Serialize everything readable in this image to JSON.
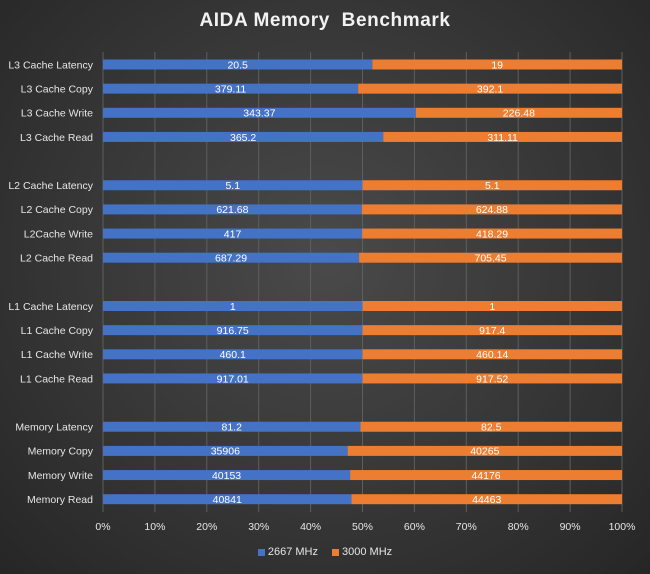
{
  "chart_data": {
    "type": "bar",
    "orientation": "horizontal",
    "stacked": "100%",
    "title": "AIDA Memory  Benchmark",
    "xlabel": "",
    "ylabel": "",
    "xlim": [
      0,
      100
    ],
    "xticks": [
      "0%",
      "10%",
      "20%",
      "30%",
      "40%",
      "50%",
      "60%",
      "70%",
      "80%",
      "90%",
      "100%"
    ],
    "grid": true,
    "legend_position": "bottom",
    "groups": [
      [
        "L3 Cache Latency",
        "L3 Cache Copy",
        "L3 Cache Write",
        "L3 Cache Read"
      ],
      [
        "L2 Cache Latency",
        "L2 Cache Copy",
        "L2Cache Write",
        "L2 Cache Read"
      ],
      [
        "L1 Cache Latency",
        "L1 Cache Copy",
        "L1 Cache Write",
        "L1 Cache Read"
      ],
      [
        "Memory Latency",
        "Memory Copy",
        "Memory Write",
        "Memory Read"
      ]
    ],
    "categories": [
      "L3 Cache Latency",
      "L3 Cache Copy",
      "L3 Cache Write",
      "L3 Cache Read",
      "L2 Cache Latency",
      "L2 Cache Copy",
      "L2Cache Write",
      "L2 Cache Read",
      "L1 Cache Latency",
      "L1 Cache Copy",
      "L1 Cache Write",
      "L1 Cache Read",
      "Memory Latency",
      "Memory Copy",
      "Memory Write",
      "Memory Read"
    ],
    "series": [
      {
        "name": "2667 MHz",
        "color": "#4472c4",
        "values": [
          20.5,
          379.11,
          343.37,
          365.2,
          5.1,
          621.68,
          417,
          687.29,
          1,
          916.75,
          460.1,
          917.01,
          81.2,
          35906,
          40153,
          40841
        ],
        "labels": [
          "20.5",
          "379.11",
          "343.37",
          "365.2",
          "5.1",
          "621.68",
          "417",
          "687.29",
          "1",
          "916.75",
          "460.1",
          "917.01",
          "81.2",
          "35906",
          "40153",
          "40841"
        ]
      },
      {
        "name": "3000 MHz",
        "color": "#ed7d31",
        "values": [
          19,
          392.1,
          226.48,
          311.11,
          5.1,
          624.88,
          418.29,
          705.45,
          1,
          917.4,
          460.14,
          917.52,
          82.5,
          40265,
          44176,
          44463
        ],
        "labels": [
          "19",
          "392.1",
          "226.48",
          "311.11",
          "5.1",
          "624.88",
          "418.29",
          "705.45",
          "1",
          "917.4",
          "460.14",
          "917.52",
          "82.5",
          "40265",
          "44176",
          "44463"
        ]
      }
    ]
  }
}
